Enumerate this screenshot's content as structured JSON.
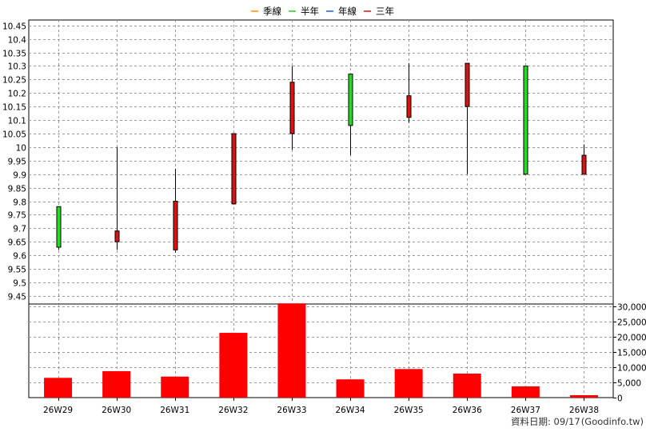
{
  "chart_data": [
    {
      "type": "candlestick",
      "legend": [
        {
          "name": "季線",
          "color": "#ff8c00"
        },
        {
          "name": "半年",
          "color": "#22cc22"
        },
        {
          "name": "年線",
          "color": "#1f5fd6"
        },
        {
          "name": "三年",
          "color": "#dd1111"
        }
      ],
      "categories": [
        "26W29",
        "26W30",
        "26W31",
        "26W32",
        "26W33",
        "26W34",
        "26W35",
        "26W36",
        "26W37",
        "26W38"
      ],
      "candles": [
        {
          "open": 9.63,
          "high": 9.78,
          "low": 9.62,
          "close": 9.78
        },
        {
          "open": 9.69,
          "high": 10.0,
          "low": 9.62,
          "close": 9.65
        },
        {
          "open": 9.8,
          "high": 9.92,
          "low": 9.61,
          "close": 9.62
        },
        {
          "open": 10.05,
          "high": 10.05,
          "low": 9.79,
          "close": 9.79
        },
        {
          "open": 10.24,
          "high": 10.3,
          "low": 9.99,
          "close": 10.05
        },
        {
          "open": 10.08,
          "high": 10.27,
          "low": 9.97,
          "close": 10.27
        },
        {
          "open": 10.19,
          "high": 10.31,
          "low": 10.09,
          "close": 10.11
        },
        {
          "open": 10.31,
          "high": 10.31,
          "low": 9.9,
          "close": 10.15
        },
        {
          "open": 9.9,
          "high": 10.3,
          "low": 9.9,
          "close": 10.3
        },
        {
          "open": 9.97,
          "high": 10.01,
          "low": 9.9,
          "close": 9.9
        }
      ],
      "y_ticks": [
        9.45,
        9.5,
        9.55,
        9.6,
        9.65,
        9.7,
        9.75,
        9.8,
        9.85,
        9.9,
        9.95,
        10.0,
        10.05,
        10.1,
        10.15,
        10.2,
        10.25,
        10.3,
        10.35,
        10.4,
        10.45
      ],
      "y_tick_labels": [
        "9.45",
        "9.5",
        "9.55",
        "9.6",
        "9.65",
        "9.7",
        "9.75",
        "9.8",
        "9.85",
        "9.9",
        "9.95",
        "10",
        "10.05",
        "10.1",
        "10.15",
        "10.2",
        "10.25",
        "10.3",
        "10.35",
        "10.4",
        "10.45"
      ],
      "ylim": [
        9.42,
        10.47
      ],
      "up_color": "#22dd22",
      "down_color": "#dd1111",
      "grid": true
    },
    {
      "type": "bar",
      "categories": [
        "26W29",
        "26W30",
        "26W31",
        "26W32",
        "26W33",
        "26W34",
        "26W35",
        "26W36",
        "26W37",
        "26W38"
      ],
      "values": [
        6500,
        8700,
        6900,
        21300,
        31000,
        6000,
        9400,
        7900,
        3700,
        800
      ],
      "y_ticks": [
        0,
        5000,
        10000,
        15000,
        20000,
        25000,
        30000
      ],
      "y_tick_labels": [
        "0",
        "5,000",
        "10,000",
        "15,000",
        "20,000",
        "25,000",
        "30,000"
      ],
      "ylim": [
        0,
        30000
      ],
      "bar_color": "#ff0000",
      "grid": true
    }
  ],
  "footer": {
    "data_date": "資料日期: 09/17",
    "source": "(Goodinfo.tw)"
  }
}
